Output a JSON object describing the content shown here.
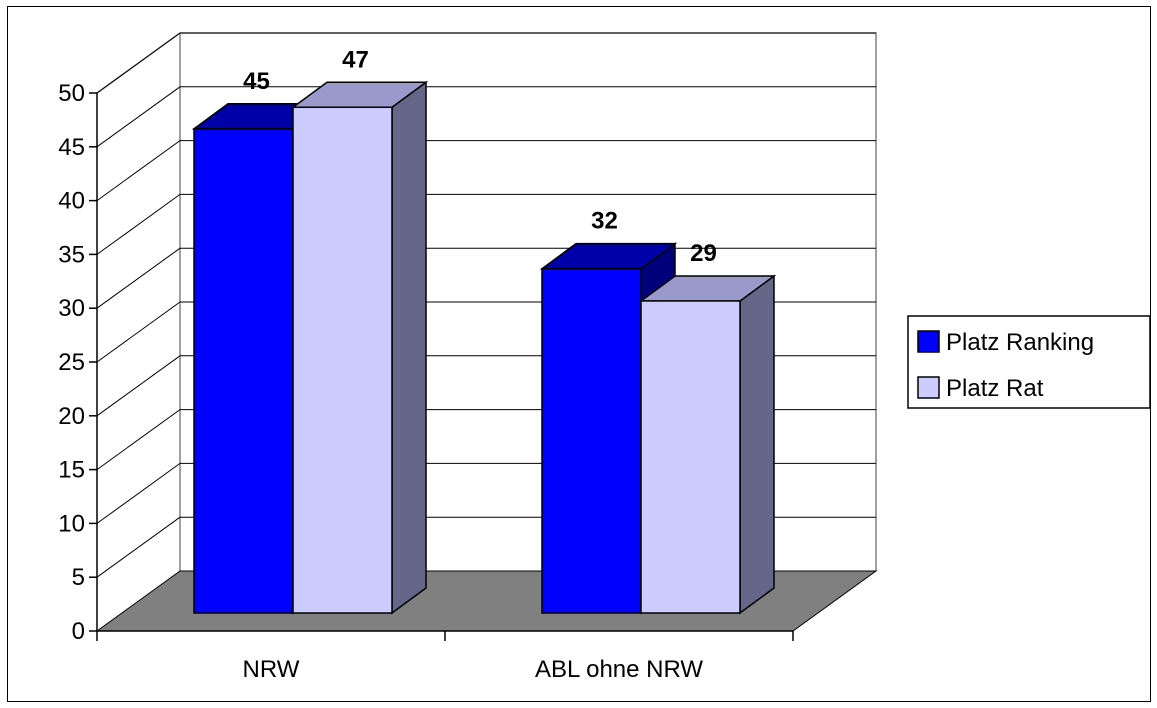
{
  "chart_data": {
    "type": "bar",
    "style": "3d-clustered-column",
    "categories": [
      "NRW",
      "ABL ohne NRW"
    ],
    "series": [
      {
        "name": "Platz Ranking",
        "values": [
          45,
          32
        ],
        "color": "#0000FF",
        "top_color": "#0000A8",
        "side_color": "#00007A"
      },
      {
        "name": "Platz Rat",
        "values": [
          47,
          29
        ],
        "color": "#CCCCFF",
        "top_color": "#9999CC",
        "side_color": "#666688"
      }
    ],
    "y_ticks": [
      "0",
      "5",
      "10",
      "15",
      "20",
      "25",
      "30",
      "35",
      "40",
      "45",
      "50"
    ],
    "ylim": [
      0,
      50
    ],
    "grid": true,
    "legend_position": "right",
    "floor_color": "#808080",
    "title": "",
    "xlabel": "",
    "ylabel": ""
  }
}
